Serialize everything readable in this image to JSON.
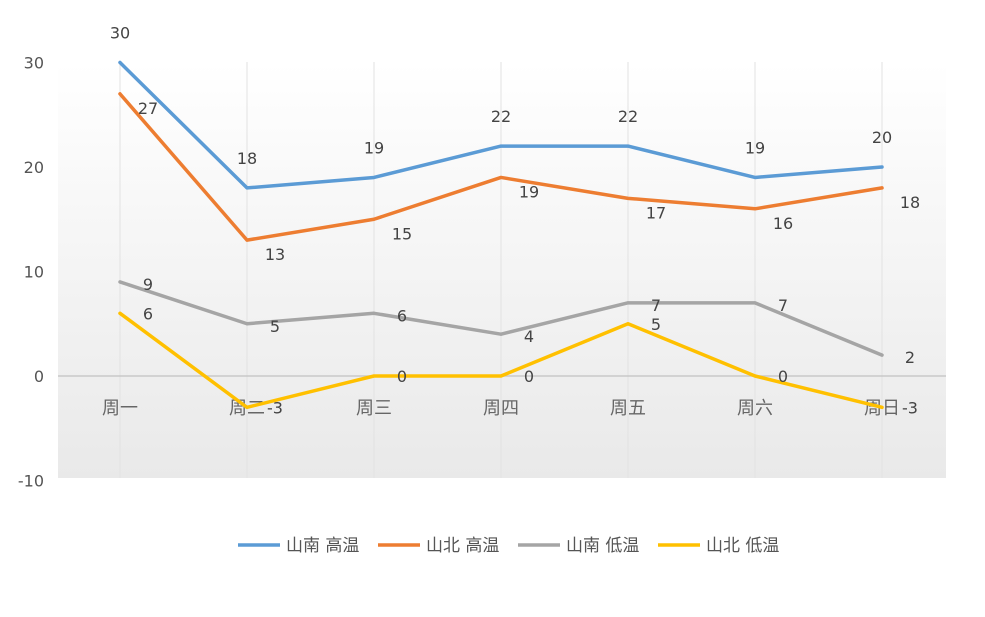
{
  "chart_data": {
    "type": "line",
    "title": "",
    "xlabel": "",
    "ylabel": "",
    "categories": [
      "周一",
      "周二",
      "周三",
      "周四",
      "周五",
      "周六",
      "周日"
    ],
    "ylim": [
      -10,
      30
    ],
    "yticks": [
      30,
      20,
      10,
      0,
      -10
    ],
    "grid": "vertical",
    "legend_position": "bottom",
    "series": [
      {
        "name": "山南 高温",
        "color": "#5b9bd5",
        "values": [
          30,
          18,
          19,
          22,
          22,
          19,
          20
        ]
      },
      {
        "name": "山北 高温",
        "color": "#ed7d31",
        "values": [
          27,
          13,
          15,
          19,
          17,
          16,
          18
        ]
      },
      {
        "name": "山南 低温",
        "color": "#a5a5a5",
        "values": [
          9,
          5,
          6,
          4,
          7,
          7,
          2
        ]
      },
      {
        "name": "山北 低温",
        "color": "#ffc000",
        "values": [
          6,
          -3,
          0,
          0,
          5,
          0,
          -3
        ]
      }
    ]
  }
}
